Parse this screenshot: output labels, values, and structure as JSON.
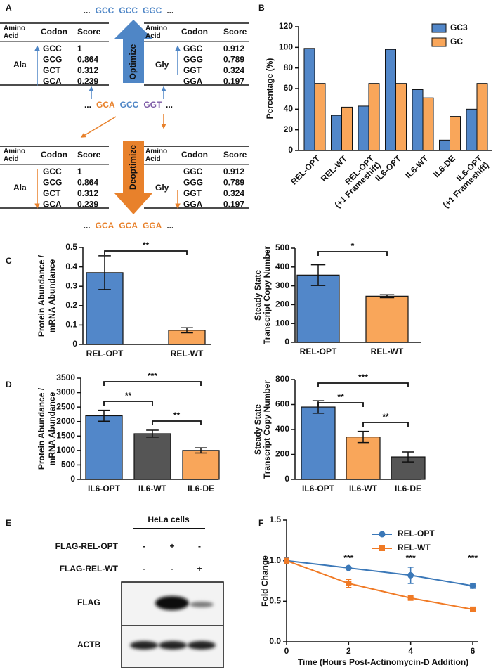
{
  "panel_labels": [
    "A",
    "B",
    "C",
    "D",
    "E",
    "F"
  ],
  "panel_a": {
    "top_sequence": [
      {
        "text": "...",
        "color": "#111111"
      },
      {
        "text": "GCC",
        "color": "#4f86c6"
      },
      {
        "text": "GCC",
        "color": "#4f86c6"
      },
      {
        "text": "GGC",
        "color": "#4f86c6"
      },
      {
        "text": "...",
        "color": "#111111"
      }
    ],
    "middle_sequence": [
      {
        "text": "...",
        "color": "#111111"
      },
      {
        "text": "GCA",
        "color": "#e8812b"
      },
      {
        "text": "GCC",
        "color": "#4f86c6"
      },
      {
        "text": "GGT",
        "color": "#7d5ba6"
      },
      {
        "text": "...",
        "color": "#111111"
      }
    ],
    "bottom_sequence": [
      {
        "text": "...",
        "color": "#111111"
      },
      {
        "text": "GCA",
        "color": "#e8812b"
      },
      {
        "text": "GCA",
        "color": "#e8812b"
      },
      {
        "text": "GGA",
        "color": "#e8812b"
      },
      {
        "text": "...",
        "color": "#111111"
      }
    ],
    "optimize_label": "Optimize",
    "deoptimize_label": "Deoptimize",
    "table_header": [
      "Amino Acid",
      "Codon",
      "Score"
    ],
    "tables": [
      {
        "amino_acid": "Ala",
        "rows": [
          {
            "codon": "GCC",
            "score": 1,
            "color": "#4f86c6"
          },
          {
            "codon": "GCG",
            "score": 0.864
          },
          {
            "codon": "GCT",
            "score": 0.312
          },
          {
            "codon": "GCA",
            "score": 0.239,
            "color": "#e8812b"
          }
        ]
      },
      {
        "amino_acid": "Gly",
        "rows": [
          {
            "codon": "GGC",
            "score": 0.912,
            "color": "#4f86c6"
          },
          {
            "codon": "GGG",
            "score": 0.789
          },
          {
            "codon": "GGT",
            "score": 0.324,
            "color": "#7d5ba6"
          },
          {
            "codon": "GGA",
            "score": 0.197
          }
        ]
      },
      {
        "amino_acid": "Ala",
        "rows": [
          {
            "codon": "GCC",
            "score": 1,
            "color": "#4f86c6"
          },
          {
            "codon": "GCG",
            "score": 0.864
          },
          {
            "codon": "GCT",
            "score": 0.312
          },
          {
            "codon": "GCA",
            "score": 0.239,
            "color": "#e8812b"
          }
        ]
      },
      {
        "amino_acid": "Gly",
        "rows": [
          {
            "codon": "GGC",
            "score": 0.912
          },
          {
            "codon": "GGG",
            "score": 0.789
          },
          {
            "codon": "GGT",
            "score": 0.324,
            "color": "#7d5ba6"
          },
          {
            "codon": "GGA",
            "score": 0.197,
            "color": "#e8812b"
          }
        ]
      }
    ]
  },
  "chart_data": [
    {
      "type": "bar",
      "ylabel": "Percentage (%)",
      "ylim": [
        0,
        120
      ],
      "yticks": [
        0,
        20,
        40,
        60,
        80,
        100,
        120
      ],
      "categories": [
        [
          "REL-OPT"
        ],
        [
          "REL-WT"
        ],
        [
          "REL-OPT",
          "(+1 Frameshift)"
        ],
        [
          "IL6-OPT"
        ],
        [
          "IL6-WT"
        ],
        [
          "IL6-DE"
        ],
        [
          "IL6-OPT",
          "(+1 Frameshift)"
        ]
      ],
      "series": [
        {
          "name": "GC3",
          "color": "#5287c9",
          "values": [
            99,
            34,
            43,
            98,
            59,
            10,
            40
          ]
        },
        {
          "name": "GC",
          "color": "#f9a65a",
          "values": [
            65,
            42,
            65,
            65,
            51,
            33,
            65
          ]
        }
      ],
      "legend": "upper right"
    },
    {
      "type": "bar",
      "ylabel": [
        "Protein Abundance /",
        "mRNA Abundance"
      ],
      "ylim": [
        0,
        0.5
      ],
      "yticks": [
        0,
        0.1,
        0.2,
        0.3,
        0.4,
        0.5
      ],
      "categories": [
        "REL-OPT",
        "REL-WT"
      ],
      "values": [
        0.37,
        0.073
      ],
      "errors": [
        0.087,
        0.013
      ],
      "colors": [
        "#5287c9",
        "#f9a65a"
      ],
      "significance": [
        {
          "label": "**",
          "between": [
            "REL-OPT",
            "REL-WT"
          ]
        }
      ]
    },
    {
      "type": "bar",
      "ylabel": [
        "Steady State",
        "Transcript Copy Number"
      ],
      "ylim": [
        0,
        500
      ],
      "yticks": [
        0,
        100,
        200,
        300,
        400,
        500
      ],
      "categories": [
        "REL-OPT",
        "REL-WT"
      ],
      "values": [
        357,
        245
      ],
      "errors": [
        55,
        8
      ],
      "colors": [
        "#5287c9",
        "#f9a65a"
      ],
      "significance": [
        {
          "label": "*",
          "between": [
            "REL-OPT",
            "REL-WT"
          ]
        }
      ]
    },
    {
      "type": "bar",
      "ylabel": [
        "Protein Abundance /",
        "mRNA Abundance"
      ],
      "ylim": [
        0,
        3500
      ],
      "yticks": [
        0,
        500,
        1000,
        1500,
        2000,
        2500,
        3000,
        3500
      ],
      "categories": [
        "IL6-OPT",
        "IL6-WT",
        "IL6-DE"
      ],
      "values": [
        2200,
        1580,
        1000
      ],
      "errors": [
        190,
        120,
        90
      ],
      "colors": [
        "#5287c9",
        "#555555",
        "#f9a65a"
      ],
      "significance": [
        {
          "label": "***",
          "between": [
            "IL6-OPT",
            "IL6-DE"
          ]
        },
        {
          "label": "**",
          "between": [
            "IL6-OPT",
            "IL6-WT"
          ]
        },
        {
          "label": "**",
          "between": [
            "IL6-WT",
            "IL6-DE"
          ]
        }
      ]
    },
    {
      "type": "bar",
      "ylabel": [
        "Steady State",
        "Transcript Copy Number"
      ],
      "ylim": [
        0,
        800
      ],
      "yticks": [
        0,
        200,
        400,
        600,
        800
      ],
      "categories": [
        "IL6-OPT",
        "IL6-WT",
        "IL6-DE"
      ],
      "values": [
        580,
        340,
        180
      ],
      "errors": [
        50,
        45,
        40
      ],
      "colors": [
        "#5287c9",
        "#f9a65a",
        "#555555"
      ],
      "significance": [
        {
          "label": "***",
          "between": [
            "IL6-OPT",
            "IL6-DE"
          ]
        },
        {
          "label": "**",
          "between": [
            "IL6-OPT",
            "IL6-WT"
          ]
        },
        {
          "label": "**",
          "between": [
            "IL6-WT",
            "IL6-DE"
          ]
        }
      ]
    },
    {
      "type": "line",
      "xlabel": "Time (Hours Post-Actinomycin-D Addition)",
      "ylabel": "Fold Change",
      "x": [
        0,
        2,
        4,
        6
      ],
      "xlim": [
        0,
        6
      ],
      "xticks": [
        0,
        2,
        4,
        6
      ],
      "ylim": [
        0,
        1.5
      ],
      "yticks": [
        {
          "value": 0,
          "label": "0.0"
        },
        {
          "value": 0.5,
          "label": "0.5"
        },
        {
          "value": 1,
          "label": "1.0"
        },
        {
          "value": 1.5,
          "label": "1.5"
        }
      ],
      "series": [
        {
          "name": "REL-OPT",
          "color": "#3b78b8",
          "marker": "circle",
          "values": [
            1,
            0.91,
            0.82,
            0.69
          ],
          "errors": [
            0.04,
            0.01,
            0.1,
            0.03
          ]
        },
        {
          "name": "REL-WT",
          "color": "#f07a25",
          "marker": "square",
          "values": [
            1,
            0.72,
            0.54,
            0.4
          ],
          "errors": [
            0.03,
            0.05,
            0.01,
            0.01
          ]
        }
      ],
      "annotations": [
        {
          "x": 2,
          "text": "***"
        },
        {
          "x": 4,
          "text": "***"
        },
        {
          "x": 6,
          "text": "***"
        }
      ],
      "legend": "upper right"
    }
  ],
  "panel_e": {
    "title": "HeLa cells",
    "conditions": [
      {
        "label": "FLAG-REL-OPT",
        "signs": [
          "-",
          "+",
          "-"
        ]
      },
      {
        "label": "FLAG-REL-WT",
        "signs": [
          "-",
          "-",
          "+"
        ]
      }
    ],
    "blots": [
      "FLAG",
      "ACTB"
    ]
  }
}
